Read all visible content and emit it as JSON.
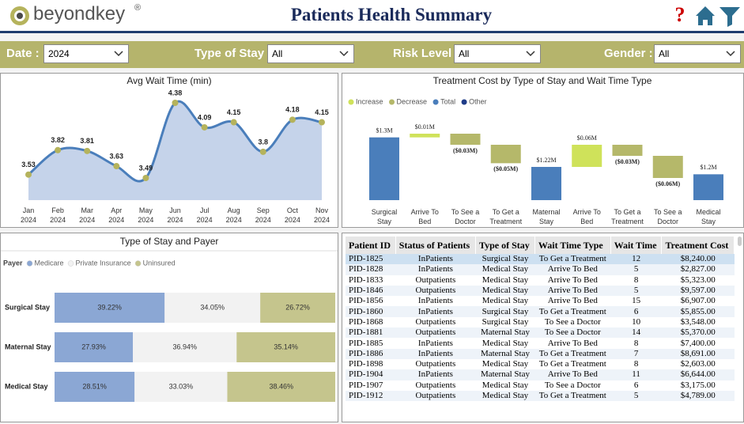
{
  "header": {
    "brand": "beyondkey",
    "brand_mark": "®",
    "title": "Patients Health Summary"
  },
  "filters": [
    {
      "label": "Date :",
      "value": "2024"
    },
    {
      "label": "Type of Stay :",
      "value": "All"
    },
    {
      "label": "Risk Level :",
      "value": "All"
    },
    {
      "label": "Gender :",
      "value": "All"
    }
  ],
  "chart_data": [
    {
      "type": "area",
      "title": "Avg Wait Time (min)",
      "categories": [
        "Jan 2024",
        "Feb 2024",
        "Mar 2024",
        "Apr 2024",
        "May 2024",
        "Jun 2024",
        "Jul 2024",
        "Aug 2024",
        "Sep 2024",
        "Oct 2024",
        "Nov 2024"
      ],
      "values": [
        3.53,
        3.82,
        3.81,
        3.63,
        3.49,
        4.38,
        4.09,
        4.15,
        3.8,
        4.18,
        4.15
      ],
      "color": "#4a7ebb",
      "fill": "#c5d3ea",
      "marker_color": "#b5b35c"
    },
    {
      "type": "waterfall",
      "title": "Treatment Cost by Type of Stay and Wait Time Type",
      "legend": [
        {
          "name": "Increase",
          "color": "#cfe25a"
        },
        {
          "name": "Decrease",
          "color": "#b5b86a"
        },
        {
          "name": "Total",
          "color": "#4a7ebb"
        },
        {
          "name": "Other",
          "color": "#1f3c88"
        }
      ],
      "categories": [
        "Surgical Stay",
        "Arrive To Bed",
        "To See a Doctor",
        "To Get a Treatment",
        "Maternal Stay",
        "Arrive To Bed",
        "To Get a Treatment",
        "To See a Doctor",
        "Medical Stay"
      ],
      "bar_kinds": [
        "Total",
        "Increase",
        "Decrease",
        "Decrease",
        "Total",
        "Increase",
        "Decrease",
        "Decrease",
        "Total"
      ],
      "values": [
        1300000,
        10000,
        -30000,
        -50000,
        1220000,
        60000,
        -30000,
        -60000,
        1200000
      ],
      "value_labels": [
        "$1.3M",
        "$0.01M",
        "($0.03M)",
        "($0.05M)",
        "$1.22M",
        "$0.06M",
        "($0.03M)",
        "($0.06M)",
        "$1.2M"
      ]
    },
    {
      "type": "stacked-bar-100",
      "title": "Type of Stay and Payer",
      "legend_title": "Payer",
      "categories": [
        "Surgical Stay",
        "Maternal Stay",
        "Medical Stay"
      ],
      "series": [
        {
          "name": "Medicare",
          "color": "#8ba7d4",
          "values": [
            39.22,
            27.93,
            28.51
          ],
          "value_labels": [
            "39.22%",
            "27.93%",
            "28.51%"
          ]
        },
        {
          "name": "Private Insurance",
          "color": "#f2f2f2",
          "values": [
            34.05,
            36.94,
            33.03
          ],
          "value_labels": [
            "34.05%",
            "36.94%",
            "33.03%"
          ]
        },
        {
          "name": "Uninsured",
          "color": "#c5c58d",
          "values": [
            26.72,
            35.14,
            38.46
          ],
          "value_labels": [
            "26.72%",
            "35.14%",
            "38.46%"
          ]
        }
      ]
    }
  ],
  "table": {
    "columns": [
      "Patient ID",
      "Status of Patients",
      "Type of Stay",
      "Wait Time Type",
      "Wait Time",
      "Treatment Cost"
    ],
    "rows": [
      [
        "PID-1825",
        "InPatients",
        "Surgical Stay",
        "To Get a Treatment",
        "12",
        "$8,240.00"
      ],
      [
        "PID-1828",
        "InPatients",
        "Medical Stay",
        "Arrive To Bed",
        "5",
        "$2,827.00"
      ],
      [
        "PID-1833",
        "Outpatients",
        "Medical Stay",
        "Arrive To Bed",
        "8",
        "$5,323.00"
      ],
      [
        "PID-1846",
        "Outpatients",
        "Medical Stay",
        "Arrive To Bed",
        "5",
        "$9,597.00"
      ],
      [
        "PID-1856",
        "InPatients",
        "Medical Stay",
        "Arrive To Bed",
        "15",
        "$6,907.00"
      ],
      [
        "PID-1860",
        "InPatients",
        "Surgical Stay",
        "To Get a Treatment",
        "6",
        "$5,855.00"
      ],
      [
        "PID-1868",
        "Outpatients",
        "Surgical Stay",
        "To See a Doctor",
        "10",
        "$3,548.00"
      ],
      [
        "PID-1881",
        "Outpatients",
        "Maternal Stay",
        "To See a Doctor",
        "14",
        "$5,370.00"
      ],
      [
        "PID-1885",
        "InPatients",
        "Medical Stay",
        "Arrive To Bed",
        "8",
        "$7,400.00"
      ],
      [
        "PID-1886",
        "InPatients",
        "Maternal Stay",
        "To Get a Treatment",
        "7",
        "$8,691.00"
      ],
      [
        "PID-1898",
        "Outpatients",
        "Medical Stay",
        "To Get a Treatment",
        "8",
        "$2,603.00"
      ],
      [
        "PID-1904",
        "InPatients",
        "Maternal Stay",
        "Arrive To Bed",
        "11",
        "$6,644.00"
      ],
      [
        "PID-1907",
        "Outpatients",
        "Medical Stay",
        "To See a Doctor",
        "6",
        "$3,175.00"
      ],
      [
        "PID-1912",
        "Outpatients",
        "Medical Stay",
        "To Get a Treatment",
        "5",
        "$4,789.00"
      ]
    ]
  }
}
